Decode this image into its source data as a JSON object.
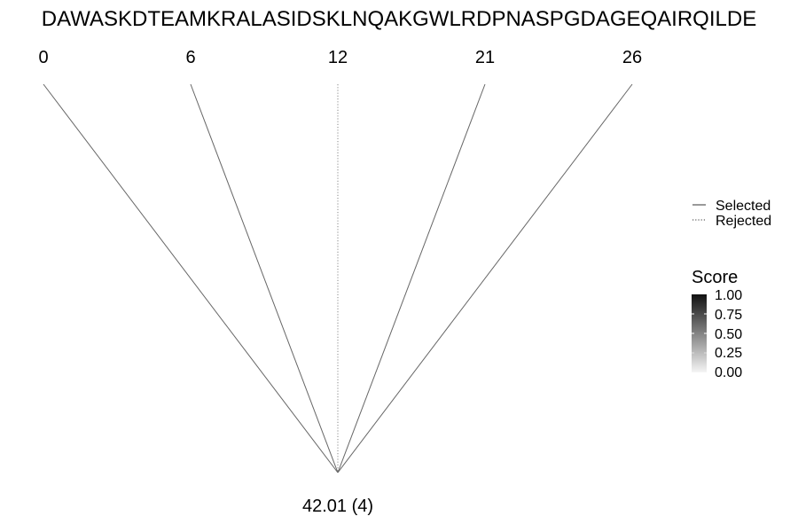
{
  "sequence": "DAWASKDTEAMKRALASIDSKLNQAKGWLRDPNASPGDAGEQAIRQILDE",
  "root": {
    "label": "42.01 (4)"
  },
  "branches": [
    {
      "label": "0",
      "status": "Selected"
    },
    {
      "label": "6",
      "status": "Selected"
    },
    {
      "label": "12",
      "status": "Rejected"
    },
    {
      "label": "21",
      "status": "Selected"
    },
    {
      "label": "26",
      "status": "Selected"
    }
  ],
  "legend": {
    "items": [
      {
        "label": "Selected",
        "line_style": "solid"
      },
      {
        "label": "Rejected",
        "line_style": "dotted"
      }
    ]
  },
  "score_scale": {
    "title": "Score",
    "ticks": [
      "1.00",
      "0.75",
      "0.50",
      "0.25",
      "0.00"
    ],
    "color_high": "#111111",
    "color_low": "#f5f5f5"
  },
  "colors": {
    "line": "#666666"
  }
}
